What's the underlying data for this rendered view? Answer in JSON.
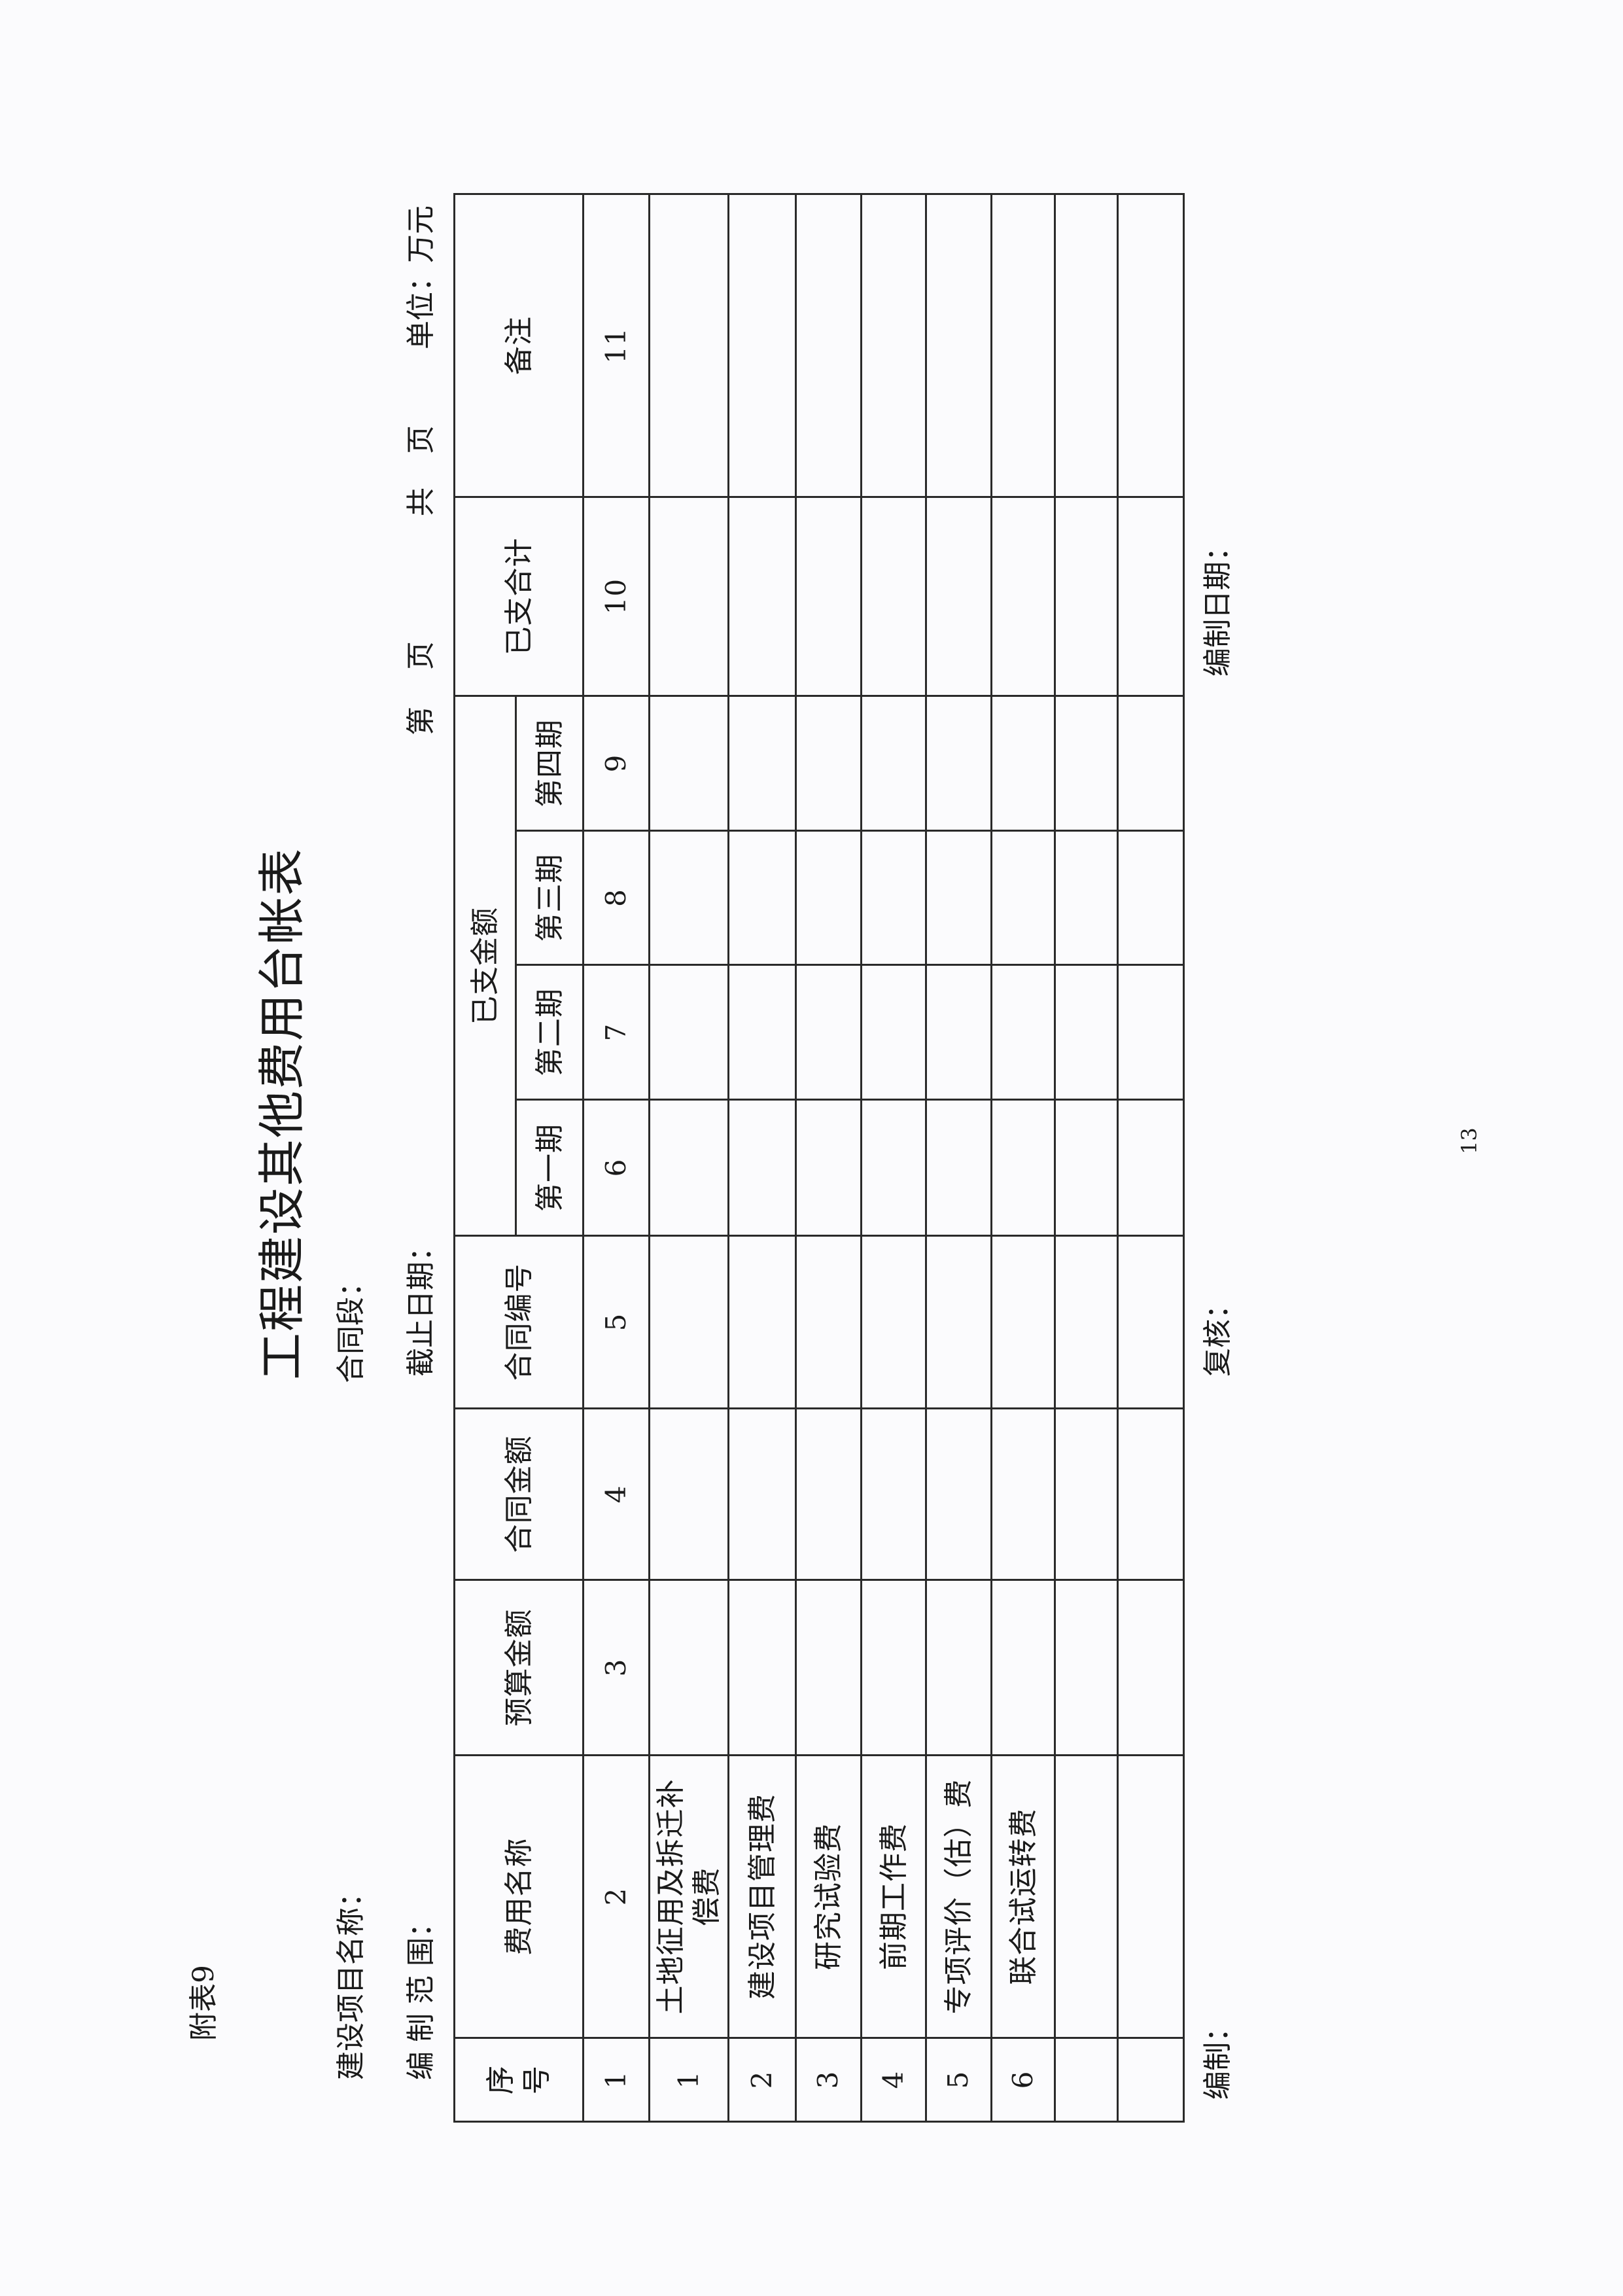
{
  "doc": {
    "appendix": "附表9",
    "title": "工程建设其他费用台帐表",
    "project_name_label": "建设项目名称：",
    "contract_section_label": "合同段：",
    "scope_label": "编 制 范 围：",
    "cutoff_label": "截止日期：",
    "page_label_1": "第",
    "page_label_2": "页",
    "total_label_1": "共",
    "total_label_2": "页",
    "unit_label": "单位：万元"
  },
  "table": {
    "headers": {
      "seq": "序号",
      "name": "费用名称",
      "budget": "预算金额",
      "contract_amount": "合同金额",
      "contract_no": "合同编号",
      "paid": "已支金额",
      "p1": "第一期",
      "p2": "第二期",
      "p3": "第三期",
      "p4": "第四期",
      "paid_total": "已支合计",
      "remark": "备注"
    },
    "column_numbers": [
      "1",
      "2",
      "3",
      "4",
      "5",
      "6",
      "7",
      "8",
      "9",
      "10",
      "11"
    ],
    "rows": [
      {
        "seq": "1",
        "name": "土地征用及拆迁补偿费"
      },
      {
        "seq": "2",
        "name": "建设项目管理费"
      },
      {
        "seq": "3",
        "name": "研究试验费"
      },
      {
        "seq": "4",
        "name": "前期工作费"
      },
      {
        "seq": "5",
        "name": "专项评价（估）费"
      },
      {
        "seq": "6",
        "name": "联合试运转费"
      },
      {
        "seq": "",
        "name": ""
      },
      {
        "seq": "",
        "name": ""
      }
    ]
  },
  "footer": {
    "prepared_by": "编制：",
    "reviewed_by": "复核：",
    "prepared_date": "编制日期：",
    "page_number": "13"
  }
}
